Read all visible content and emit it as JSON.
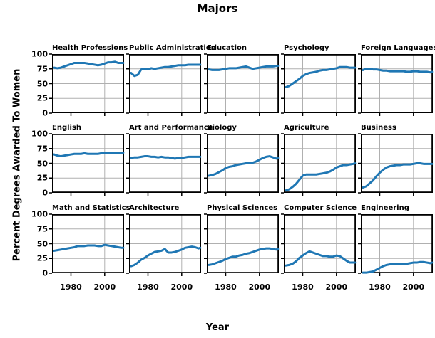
{
  "figure": {
    "title": "Majors",
    "x_axis_label": "Year",
    "y_axis_label": "Percent Degrees Awarded To Women"
  },
  "axes": {
    "xlim": [
      1968.8,
      2011.5
    ],
    "ylim": [
      0,
      100
    ],
    "x_ticks": [
      1980,
      2000
    ],
    "x_tick_labels": [
      "1980",
      "2000"
    ],
    "y_ticks": [
      0,
      25,
      50,
      75,
      100
    ],
    "y_tick_labels": [
      "0",
      "25",
      "50",
      "75",
      "100"
    ],
    "grid": true
  },
  "style": {
    "line_color": "#1f77b4",
    "grid_color": "#b0b0b0",
    "spine_color": "#000000",
    "text_color": "#000000"
  },
  "chart_data": [
    {
      "type": "line",
      "title": "Health Professions",
      "x": [
        1970,
        1972,
        1974,
        1976,
        1978,
        1980,
        1982,
        1984,
        1986,
        1988,
        1990,
        1992,
        1994,
        1996,
        1998,
        2000,
        2002,
        2004,
        2006,
        2008,
        2010,
        2011
      ],
      "y": [
        77,
        76,
        77,
        79,
        81,
        83,
        85,
        85,
        85,
        85,
        84,
        83,
        82,
        81,
        82,
        84,
        86,
        86,
        87,
        85,
        85,
        85
      ]
    },
    {
      "type": "line",
      "title": "Public Administration",
      "x": [
        1970,
        1972,
        1974,
        1976,
        1978,
        1980,
        1982,
        1984,
        1986,
        1988,
        1990,
        1992,
        1994,
        1996,
        1998,
        2000,
        2002,
        2004,
        2006,
        2008,
        2010,
        2011
      ],
      "y": [
        68,
        63,
        65,
        74,
        75,
        74,
        76,
        75,
        76,
        77,
        78,
        78,
        79,
        80,
        81,
        81,
        81,
        82,
        82,
        82,
        82,
        82
      ]
    },
    {
      "type": "line",
      "title": "Education",
      "x": [
        1970,
        1972,
        1974,
        1976,
        1978,
        1980,
        1982,
        1984,
        1986,
        1988,
        1990,
        1992,
        1994,
        1996,
        1998,
        2000,
        2002,
        2004,
        2006,
        2008,
        2010,
        2011
      ],
      "y": [
        74,
        73,
        73,
        73,
        74,
        75,
        76,
        76,
        76,
        77,
        78,
        79,
        77,
        75,
        76,
        77,
        78,
        79,
        79,
        79,
        80,
        80
      ]
    },
    {
      "type": "line",
      "title": "Psychology",
      "x": [
        1970,
        1972,
        1974,
        1976,
        1978,
        1980,
        1982,
        1984,
        1986,
        1988,
        1990,
        1992,
        1994,
        1996,
        1998,
        2000,
        2002,
        2004,
        2006,
        2008,
        2010,
        2011
      ],
      "y": [
        44,
        46,
        50,
        54,
        58,
        63,
        66,
        68,
        69,
        70,
        72,
        73,
        73,
        74,
        75,
        76,
        78,
        78,
        78,
        77,
        77,
        77
      ]
    },
    {
      "type": "line",
      "title": "Foreign Languages",
      "x": [
        1970,
        1972,
        1974,
        1976,
        1978,
        1980,
        1982,
        1984,
        1986,
        1988,
        1990,
        1992,
        1994,
        1996,
        1998,
        2000,
        2002,
        2004,
        2006,
        2008,
        2010,
        2011
      ],
      "y": [
        73,
        75,
        75,
        74,
        74,
        73,
        72,
        72,
        71,
        71,
        71,
        71,
        71,
        70,
        70,
        71,
        71,
        70,
        70,
        70,
        69,
        70
      ]
    },
    {
      "type": "line",
      "title": "English",
      "x": [
        1970,
        1972,
        1974,
        1976,
        1978,
        1980,
        1982,
        1984,
        1986,
        1988,
        1990,
        1992,
        1994,
        1996,
        1998,
        2000,
        2002,
        2004,
        2006,
        2008,
        2010,
        2011
      ],
      "y": [
        65,
        63,
        62,
        63,
        64,
        65,
        66,
        66,
        66,
        67,
        66,
        66,
        66,
        66,
        67,
        68,
        68,
        68,
        68,
        67,
        67,
        68
      ]
    },
    {
      "type": "line",
      "title": "Art and Performance",
      "x": [
        1970,
        1972,
        1974,
        1976,
        1978,
        1980,
        1982,
        1984,
        1986,
        1988,
        1990,
        1992,
        1994,
        1996,
        1998,
        2000,
        2002,
        2004,
        2006,
        2008,
        2010,
        2011
      ],
      "y": [
        59,
        60,
        60,
        61,
        62,
        62,
        61,
        61,
        60,
        61,
        60,
        60,
        59,
        58,
        59,
        59,
        60,
        61,
        61,
        61,
        61,
        61
      ]
    },
    {
      "type": "line",
      "title": "Biology",
      "x": [
        1970,
        1972,
        1974,
        1976,
        1978,
        1980,
        1982,
        1984,
        1986,
        1988,
        1990,
        1992,
        1994,
        1996,
        1998,
        2000,
        2002,
        2004,
        2006,
        2008,
        2010,
        2011
      ],
      "y": [
        29,
        30,
        32,
        35,
        38,
        42,
        44,
        45,
        47,
        48,
        49,
        50,
        50,
        51,
        53,
        56,
        59,
        61,
        62,
        60,
        58,
        59
      ]
    },
    {
      "type": "line",
      "title": "Agriculture",
      "x": [
        1970,
        1972,
        1974,
        1976,
        1978,
        1980,
        1982,
        1984,
        1986,
        1988,
        1990,
        1992,
        1994,
        1996,
        1998,
        2000,
        2002,
        2004,
        2006,
        2008,
        2010,
        2011
      ],
      "y": [
        4,
        6,
        10,
        15,
        22,
        29,
        31,
        31,
        31,
        31,
        32,
        33,
        34,
        36,
        39,
        43,
        45,
        47,
        47,
        48,
        49,
        50
      ]
    },
    {
      "type": "line",
      "title": "Business",
      "x": [
        1970,
        1972,
        1974,
        1976,
        1978,
        1980,
        1982,
        1984,
        1986,
        1988,
        1990,
        1992,
        1994,
        1996,
        1998,
        2000,
        2002,
        2004,
        2006,
        2008,
        2010,
        2011
      ],
      "y": [
        9,
        11,
        16,
        21,
        28,
        34,
        39,
        43,
        45,
        46,
        47,
        47,
        48,
        48,
        48,
        49,
        50,
        50,
        49,
        49,
        49,
        49
      ]
    },
    {
      "type": "line",
      "title": "Math and Statistics",
      "x": [
        1970,
        1972,
        1974,
        1976,
        1978,
        1980,
        1982,
        1984,
        1986,
        1988,
        1990,
        1992,
        1994,
        1996,
        1998,
        2000,
        2002,
        2004,
        2006,
        2008,
        2010,
        2011
      ],
      "y": [
        38,
        39,
        40,
        41,
        42,
        43,
        44,
        46,
        46,
        46,
        47,
        47,
        47,
        46,
        46,
        48,
        47,
        46,
        45,
        44,
        43,
        43
      ]
    },
    {
      "type": "line",
      "title": "Architecture",
      "x": [
        1970,
        1972,
        1974,
        1976,
        1978,
        1980,
        1982,
        1984,
        1986,
        1988,
        1990,
        1992,
        1994,
        1996,
        1998,
        2000,
        2002,
        2004,
        2006,
        2008,
        2010,
        2011
      ],
      "y": [
        12,
        14,
        18,
        23,
        26,
        30,
        33,
        36,
        37,
        38,
        41,
        35,
        35,
        36,
        38,
        40,
        43,
        44,
        45,
        44,
        42,
        43
      ]
    },
    {
      "type": "line",
      "title": "Physical Sciences",
      "x": [
        1970,
        1972,
        1974,
        1976,
        1978,
        1980,
        1982,
        1984,
        1986,
        1988,
        1990,
        1992,
        1994,
        1996,
        1998,
        2000,
        2002,
        2004,
        2006,
        2008,
        2010,
        2011
      ],
      "y": [
        14,
        15,
        17,
        19,
        21,
        24,
        26,
        28,
        28,
        30,
        31,
        33,
        34,
        36,
        38,
        40,
        41,
        42,
        42,
        41,
        40,
        41
      ]
    },
    {
      "type": "line",
      "title": "Computer Science",
      "x": [
        1970,
        1972,
        1974,
        1976,
        1978,
        1980,
        1982,
        1984,
        1986,
        1988,
        1990,
        1992,
        1994,
        1996,
        1998,
        2000,
        2002,
        2004,
        2006,
        2008,
        2010,
        2011
      ],
      "y": [
        13,
        14,
        16,
        20,
        26,
        30,
        34,
        37,
        35,
        33,
        31,
        29,
        29,
        28,
        28,
        30,
        29,
        25,
        21,
        18,
        18,
        18
      ]
    },
    {
      "type": "line",
      "title": "Engineering",
      "x": [
        1970,
        1972,
        1974,
        1976,
        1978,
        1980,
        1982,
        1984,
        1986,
        1988,
        1990,
        1992,
        1994,
        1996,
        1998,
        2000,
        2002,
        2004,
        2006,
        2008,
        2010,
        2011
      ],
      "y": [
        1,
        1,
        2,
        3,
        6,
        9,
        12,
        14,
        15,
        15,
        15,
        15,
        16,
        16,
        17,
        18,
        18,
        19,
        19,
        18,
        17,
        18
      ]
    }
  ]
}
